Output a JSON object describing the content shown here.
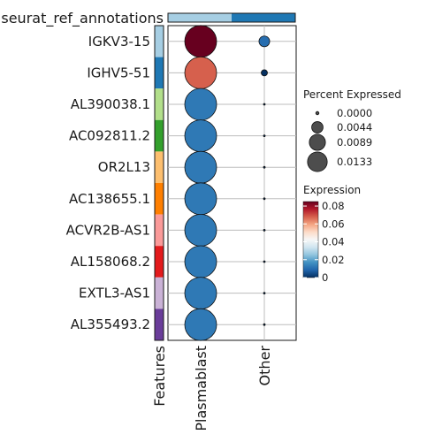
{
  "chart_data": {
    "type": "dot-plot",
    "annotation_bar_label": "seurat_ref_annotations",
    "annotation_bar_colors": [
      "#a6cee3",
      "#1f78b4"
    ],
    "features": [
      {
        "name": "IGKV3-15",
        "color": "#a6cee3"
      },
      {
        "name": "IGHV5-51",
        "color": "#1f78b4"
      },
      {
        "name": "AL390038.1",
        "color": "#b2df8a"
      },
      {
        "name": "AC092811.2",
        "color": "#33a02c"
      },
      {
        "name": "OR2L13",
        "color": "#fdbf6f"
      },
      {
        "name": "AC138655.1",
        "color": "#ff7f00"
      },
      {
        "name": "ACVR2B-AS1",
        "color": "#fb9a99"
      },
      {
        "name": "AL158068.2",
        "color": "#e31a1c"
      },
      {
        "name": "EXTL3-AS1",
        "color": "#cab2d6"
      },
      {
        "name": "AL355493.2",
        "color": "#6a3d9a"
      }
    ],
    "groups": [
      "Plasmablast",
      "Other"
    ],
    "features_axis_label": "Features",
    "percent_expressed": [
      [
        0.0133,
        0.0015
      ],
      [
        0.0133,
        0.0005
      ],
      [
        0.0133,
        0.0
      ],
      [
        0.0133,
        0.0
      ],
      [
        0.0133,
        0.0
      ],
      [
        0.0133,
        0.0
      ],
      [
        0.0133,
        0.0
      ],
      [
        0.0133,
        0.0
      ],
      [
        0.0133,
        0.0
      ],
      [
        0.0133,
        0.0
      ]
    ],
    "expression": [
      [
        0.085,
        0.01
      ],
      [
        0.068,
        0.0
      ],
      [
        0.012,
        0.0
      ],
      [
        0.012,
        0.0
      ],
      [
        0.012,
        0.0
      ],
      [
        0.012,
        0.0
      ],
      [
        0.012,
        0.0
      ],
      [
        0.012,
        0.0
      ],
      [
        0.012,
        0.0
      ],
      [
        0.012,
        0.0
      ]
    ],
    "size_legend": {
      "title": "Percent Expressed",
      "values": [
        0.0,
        0.0044,
        0.0089,
        0.0133
      ],
      "labels": [
        "0.0000",
        "0.0044",
        "0.0089",
        "0.0133"
      ]
    },
    "color_legend": {
      "title": "Expression",
      "range": [
        0,
        0.085
      ],
      "ticks": [
        0,
        0.02,
        0.04,
        0.06,
        0.08
      ],
      "tick_labels": [
        "0",
        "0.02",
        "0.04",
        "0.06",
        "0.08"
      ],
      "colors": [
        "#053061",
        "#2166ac",
        "#4393c3",
        "#92c5de",
        "#d1e5f0",
        "#f7f7f7",
        "#fddbc7",
        "#f4a582",
        "#d6604d",
        "#b2182b",
        "#67001f"
      ]
    }
  }
}
